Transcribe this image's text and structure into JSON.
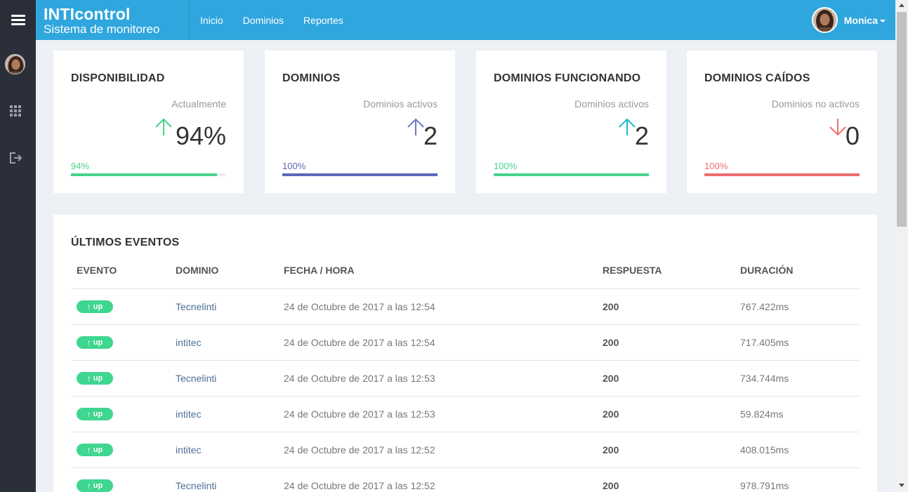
{
  "header": {
    "brand_title": "INTIcontrol",
    "brand_subtitle": "Sistema de monitoreo",
    "nav": [
      "Inicio",
      "Dominios",
      "Reportes"
    ],
    "user_name": "Monica"
  },
  "sidebar": {
    "icons": [
      "menu-icon",
      "avatar",
      "grid-icon",
      "logout-icon"
    ]
  },
  "cards": [
    {
      "title": "DISPONIBILIDAD",
      "subtitle": "Actualmente",
      "value": "94%",
      "percent_label": "94%",
      "fill": 0.94,
      "arrow": "up",
      "color": "#48d38a",
      "arrow_color": "#48d38a"
    },
    {
      "title": "DOMINIOS",
      "subtitle": "Dominios activos",
      "value": "2",
      "percent_label": "100%",
      "fill": 1.0,
      "arrow": "up",
      "color": "#5c69b8",
      "arrow_color": "#6b7ac4"
    },
    {
      "title": "DOMINIOS FUNCIONANDO",
      "subtitle": "Dominios activos",
      "value": "2",
      "percent_label": "100%",
      "fill": 1.0,
      "arrow": "up",
      "color": "#48d38a",
      "arrow_color": "#1fb8c9"
    },
    {
      "title": "DOMINIOS CAÍDOS",
      "subtitle": "Dominios no activos",
      "value": "0",
      "percent_label": "100%",
      "fill": 1.0,
      "arrow": "down",
      "color": "#ec6f70",
      "arrow_color": "#ec6f70"
    }
  ],
  "events": {
    "title": "ÚLTIMOS EVENTOS",
    "columns": [
      "EVENTO",
      "DOMINIO",
      "FECHA / HORA",
      "RESPUESTA",
      "DURACIÓN"
    ],
    "rows": [
      {
        "event": "up",
        "domain": "Tecnelinti",
        "datetime": "24 de Octubre de 2017 a las 12:54",
        "response": "200",
        "duration": "767.422ms"
      },
      {
        "event": "up",
        "domain": "intitec",
        "datetime": "24 de Octubre de 2017 a las 12:54",
        "response": "200",
        "duration": "717.405ms"
      },
      {
        "event": "up",
        "domain": "Tecnelinti",
        "datetime": "24 de Octubre de 2017 a las 12:53",
        "response": "200",
        "duration": "734.744ms"
      },
      {
        "event": "up",
        "domain": "intitec",
        "datetime": "24 de Octubre de 2017 a las 12:53",
        "response": "200",
        "duration": "59.824ms"
      },
      {
        "event": "up",
        "domain": "intitec",
        "datetime": "24 de Octubre de 2017 a las 12:52",
        "response": "200",
        "duration": "408.015ms"
      },
      {
        "event": "up",
        "domain": "Tecnelinti",
        "datetime": "24 de Octubre de 2017 a las 12:52",
        "response": "200",
        "duration": "978.791ms"
      }
    ]
  },
  "colors": {
    "header": "#2fa6de",
    "sidebar": "#2b2f3a",
    "badge_up": "#3fd68f",
    "link": "#4e6f96"
  }
}
